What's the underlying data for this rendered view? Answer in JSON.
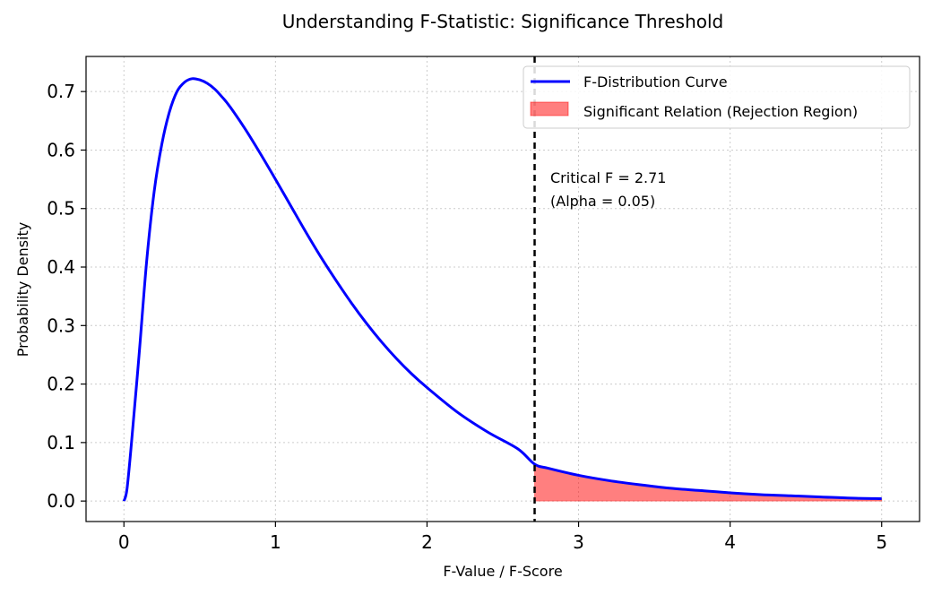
{
  "chart_data": {
    "type": "line",
    "title": "Understanding F-Statistic: Significance Threshold",
    "xlabel": "F-Value / F-Score",
    "ylabel": "Probability Density",
    "xlim": [
      -0.25,
      5.25
    ],
    "ylim": [
      -0.035,
      0.76
    ],
    "xticks": [
      0,
      1,
      2,
      3,
      4,
      5
    ],
    "xtick_labels": [
      "0",
      "1",
      "2",
      "3",
      "4",
      "5"
    ],
    "yticks": [
      0.0,
      0.1,
      0.2,
      0.3,
      0.4,
      0.5,
      0.6,
      0.7
    ],
    "ytick_labels": [
      "0.0",
      "0.1",
      "0.2",
      "0.3",
      "0.4",
      "0.5",
      "0.6",
      "0.7"
    ],
    "grid": true,
    "legend_position": "top-right",
    "series": [
      {
        "name": "F-Distribution Curve",
        "color": "#0000ff",
        "x": [
          0,
          0.02,
          0.05,
          0.1,
          0.15,
          0.2,
          0.25,
          0.3,
          0.35,
          0.4,
          0.45,
          0.5,
          0.55,
          0.6,
          0.65,
          0.7,
          0.8,
          0.9,
          1.0,
          1.1,
          1.2,
          1.3,
          1.4,
          1.5,
          1.6,
          1.7,
          1.8,
          1.9,
          2.0,
          2.2,
          2.4,
          2.6,
          2.71,
          2.8,
          3.0,
          3.2,
          3.4,
          3.6,
          3.8,
          4.0,
          4.2,
          4.4,
          4.6,
          4.8,
          5.0
        ],
        "y": [
          0,
          0.02,
          0.1,
          0.25,
          0.41,
          0.53,
          0.61,
          0.665,
          0.7,
          0.716,
          0.722,
          0.72,
          0.714,
          0.704,
          0.69,
          0.674,
          0.636,
          0.594,
          0.55,
          0.505,
          0.46,
          0.417,
          0.377,
          0.339,
          0.304,
          0.272,
          0.243,
          0.217,
          0.194,
          0.152,
          0.118,
          0.089,
          0.063,
          0.056,
          0.044,
          0.035,
          0.028,
          0.022,
          0.018,
          0.014,
          0.011,
          0.009,
          0.007,
          0.005,
          0.004
        ]
      }
    ],
    "shaded_region": {
      "name": "Significant Relation (Rejection Region)",
      "color": "#ff0000",
      "alpha": 0.5,
      "x_from": 2.71,
      "x_to": 5.0
    },
    "critical_line": {
      "x": 2.71,
      "color": "#000000",
      "style": "dashed"
    },
    "annotation": {
      "line1": "Critical F = 2.71",
      "line2": "(Alpha = 0.05)",
      "x": 2.81,
      "y": 0.55
    }
  }
}
